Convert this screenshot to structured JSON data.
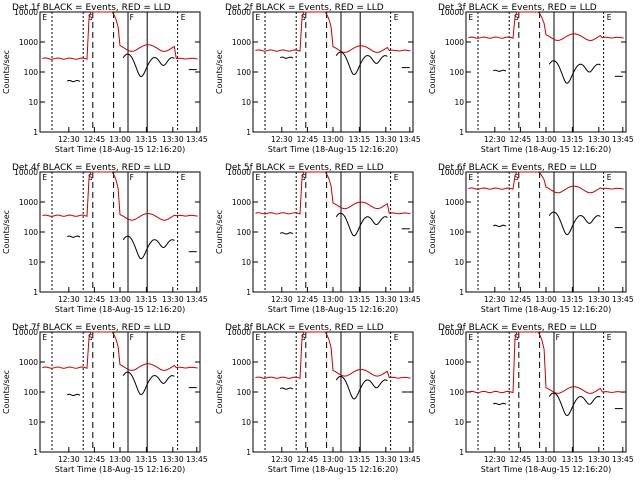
{
  "chart_data": {
    "type": "line",
    "yscale": "log",
    "ylim": [
      1,
      10000
    ],
    "ylabel": "Counts/sec",
    "xlabel": "Start Time (18-Aug-15 12:16:20)",
    "x_ticks": [
      "12:30",
      "12:45",
      "13:00",
      "13:15",
      "13:30",
      "13:45"
    ],
    "y_ticks": [
      "1",
      "10",
      "100",
      "1000",
      "10000"
    ],
    "colors": {
      "events": "#000000",
      "lld": "#cc0000",
      "frame": "#000000"
    },
    "panels": [
      {
        "title": "Det 1f BLACK = Events, RED = LLD",
        "top_labels": [
          "E",
          "S",
          "F",
          "E"
        ],
        "lld_base": 280,
        "lld_after": 650,
        "events_pre": 50,
        "events_post": 300
      },
      {
        "title": "Det 2f BLACK = Events, RED = LLD",
        "top_labels": [
          "E",
          "S",
          "",
          "E"
        ],
        "lld_base": 520,
        "lld_after": 600,
        "events_pre": 300,
        "events_post": 350
      },
      {
        "title": "Det 3f BLACK = Events, RED = LLD",
        "top_labels": [
          "E",
          "S",
          "",
          "E"
        ],
        "lld_base": 1400,
        "lld_after": 1500,
        "events_pre": 110,
        "events_post": 180
      },
      {
        "title": "Det 4f BLACK = Events, RED = LLD",
        "top_labels": [
          "E",
          "S",
          "F",
          "E"
        ],
        "lld_base": 350,
        "lld_after": 330,
        "events_pre": 70,
        "events_post": 55
      },
      {
        "title": "Det 5f BLACK = Events, RED = LLD",
        "top_labels": [
          "E",
          "S",
          "",
          "E"
        ],
        "lld_base": 420,
        "lld_after": 800,
        "events_pre": 90,
        "events_post": 320
      },
      {
        "title": "Det 6f BLACK = Events, RED = LLD",
        "top_labels": [
          "E",
          "S",
          "",
          "E"
        ],
        "lld_base": 2800,
        "lld_after": 2700,
        "events_pre": 160,
        "events_post": 350
      },
      {
        "title": "Det 7f BLACK = Events, RED = LLD",
        "top_labels": [
          "E",
          "S",
          "F",
          "E"
        ],
        "lld_base": 650,
        "lld_after": 700,
        "events_pre": 80,
        "events_post": 350
      },
      {
        "title": "Det 8f BLACK = Events, RED = LLD",
        "top_labels": [
          "E",
          "S",
          "",
          "E"
        ],
        "lld_base": 300,
        "lld_after": 450,
        "events_pre": 130,
        "events_post": 250
      },
      {
        "title": "Det 9f BLACK = Events, RED = LLD",
        "top_labels": [
          "E",
          "S",
          "F",
          "E"
        ],
        "lld_base": 100,
        "lld_after": 120,
        "events_pre": 40,
        "events_post": 70
      }
    ]
  }
}
